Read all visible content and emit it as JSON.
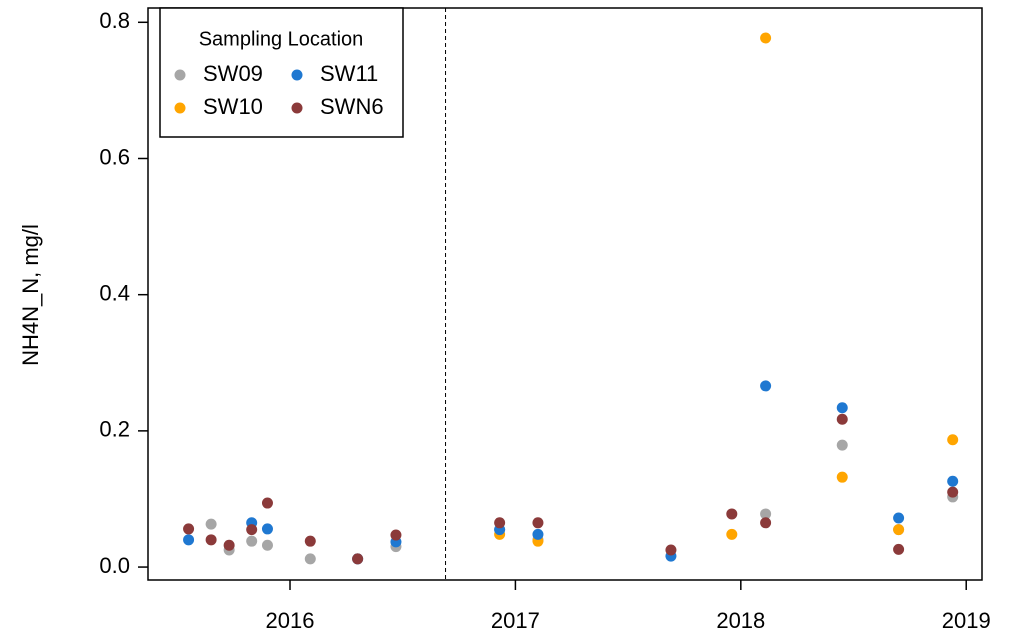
{
  "chart_data": {
    "type": "scatter",
    "y_label": "NH4N_N, mg/l",
    "legend_title": "Sampling Location",
    "legend": "top-left",
    "xlim": [
      2015.37,
      2019.07
    ],
    "ylim": [
      -0.019,
      0.821
    ],
    "xticks": [
      2016,
      2017,
      2018,
      2019
    ],
    "yticks": [
      {
        "value": 0,
        "label": "0.0"
      },
      0.2,
      0.4,
      0.6,
      0.8
    ],
    "vline": 2016.69,
    "series": [
      {
        "name": "SW09",
        "color": "#a6a6a6",
        "x": [
          2015.65,
          2015.73,
          2015.83,
          2015.9,
          2016.09,
          2016.3,
          2016.47,
          2016.93,
          2017.1,
          2018.11,
          2018.45,
          2018.7,
          2018.94
        ],
        "values": [
          0.063,
          0.025,
          0.038,
          0.032,
          0.012,
          0.012,
          0.03,
          0.055,
          0.04,
          0.078,
          0.179,
          0.055,
          0.103
        ]
      },
      {
        "name": "SW10",
        "color": "#ffa500",
        "x": [
          2016.93,
          2017.1,
          2017.96,
          2018.11,
          2018.45,
          2018.7,
          2018.94
        ],
        "values": [
          0.048,
          0.038,
          0.048,
          0.777,
          0.132,
          0.055,
          0.187
        ]
      },
      {
        "name": "SW11",
        "color": "#1f78d1",
        "x": [
          2015.55,
          2015.83,
          2015.9,
          2016.3,
          2016.47,
          2016.93,
          2017.1,
          2017.69,
          2018.11,
          2018.45,
          2018.7,
          2018.94
        ],
        "values": [
          0.04,
          0.065,
          0.056,
          0.012,
          0.037,
          0.055,
          0.048,
          0.016,
          0.266,
          0.234,
          0.072,
          0.126
        ]
      },
      {
        "name": "SWN6",
        "color": "#8b3a3a",
        "x": [
          2015.55,
          2015.65,
          2015.73,
          2015.83,
          2015.9,
          2016.09,
          2016.3,
          2016.47,
          2016.93,
          2017.1,
          2017.69,
          2017.96,
          2018.11,
          2018.45,
          2018.7,
          2018.94
        ],
        "values": [
          0.056,
          0.04,
          0.032,
          0.055,
          0.094,
          0.038,
          0.012,
          0.047,
          0.065,
          0.065,
          0.025,
          0.078,
          0.065,
          0.217,
          0.026,
          0.11
        ]
      }
    ]
  }
}
